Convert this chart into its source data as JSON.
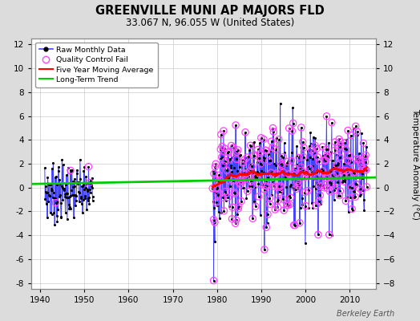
{
  "title": "GREENVILLE MUNI AP MAJORS FLD",
  "subtitle": "33.067 N, 96.055 W (United States)",
  "ylabel": "Temperature Anomaly (°C)",
  "ylim": [
    -8.5,
    12.5
  ],
  "xlim": [
    1938,
    2016
  ],
  "xticks": [
    1940,
    1950,
    1960,
    1970,
    1980,
    1990,
    2000,
    2010
  ],
  "yticks": [
    -8,
    -6,
    -4,
    -2,
    0,
    2,
    4,
    6,
    8,
    10,
    12
  ],
  "bg_color": "#dcdcdc",
  "plot_bg_color": "#ffffff",
  "raw_line_color": "#4444ff",
  "raw_marker_color": "#000000",
  "qc_fail_color": "#ff44ff",
  "moving_avg_color": "#ff0000",
  "trend_color": "#00cc00",
  "watermark": "Berkeley Earth",
  "early_start": 1941,
  "early_end": 1951,
  "main_start": 1979,
  "main_end": 2013,
  "trend_x": [
    1938,
    2016
  ],
  "trend_y": [
    0.3,
    0.85
  ],
  "seed": 7
}
